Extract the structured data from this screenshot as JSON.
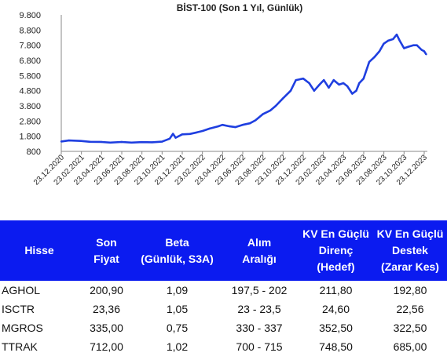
{
  "chart_data": {
    "type": "line",
    "title": "BİST-100 (Son 1 Yıl, Günlük)",
    "xlabel": "",
    "ylabel": "",
    "ylim": [
      800,
      9800
    ],
    "y_ticks": [
      "9.800",
      "8.800",
      "7.800",
      "6.800",
      "5.800",
      "4.800",
      "3.800",
      "2.800",
      "1.800",
      "800"
    ],
    "x_ticks": [
      "23.12.2020",
      "23.02.2021",
      "23.04.2021",
      "23.06.2021",
      "23.08.2021",
      "23.10.2021",
      "23.12.2021",
      "23.02.2022",
      "23.04.2022",
      "23.06.2022",
      "23.08.2022",
      "23.10.2022",
      "23.12.2022",
      "23.02.2023",
      "23.04.2023",
      "23.06.2023",
      "23.08.2023",
      "23.10.2023",
      "23.12.2023"
    ],
    "grid": false,
    "line_color": "#1f3fe0",
    "series": [
      {
        "x": [
          "2020-12-23",
          "2021-01-15",
          "2021-02-20",
          "2021-03-20",
          "2021-04-23",
          "2021-05-20",
          "2021-06-23",
          "2021-07-23",
          "2021-08-23",
          "2021-09-23",
          "2021-10-23",
          "2021-11-15",
          "2021-11-25",
          "2021-12-03",
          "2021-12-23",
          "2022-01-15",
          "2022-02-05",
          "2022-02-23",
          "2022-03-15",
          "2022-04-10",
          "2022-04-23",
          "2022-05-15",
          "2022-06-01",
          "2022-06-23",
          "2022-07-15",
          "2022-08-01",
          "2022-08-23",
          "2022-09-15",
          "2022-10-01",
          "2022-10-23",
          "2022-11-15",
          "2022-12-01",
          "2022-12-23",
          "2023-01-10",
          "2023-01-25",
          "2023-02-10",
          "2023-02-23",
          "2023-03-10",
          "2023-03-25",
          "2023-04-10",
          "2023-04-23",
          "2023-05-05",
          "2023-05-20",
          "2023-06-01",
          "2023-06-10",
          "2023-06-23",
          "2023-07-10",
          "2023-07-25",
          "2023-08-10",
          "2023-08-23",
          "2023-09-05",
          "2023-09-20",
          "2023-10-01",
          "2023-10-10",
          "2023-10-23",
          "2023-11-05",
          "2023-11-20",
          "2023-12-01",
          "2023-12-15",
          "2023-12-23",
          "2023-12-29"
        ],
        "y": [
          1450,
          1520,
          1490,
          1430,
          1420,
          1380,
          1420,
          1380,
          1410,
          1400,
          1440,
          1640,
          1960,
          1700,
          1920,
          1950,
          2050,
          2150,
          2300,
          2450,
          2550,
          2450,
          2400,
          2550,
          2650,
          2850,
          3250,
          3500,
          3800,
          4300,
          4800,
          5500,
          5600,
          5300,
          4800,
          5200,
          5500,
          5000,
          5500,
          5200,
          5300,
          5100,
          4600,
          4800,
          5300,
          5600,
          6700,
          7000,
          7400,
          7900,
          8100,
          8200,
          8500,
          8100,
          7600,
          7700,
          7800,
          7800,
          7500,
          7400,
          7200
        ]
      }
    ]
  },
  "table": {
    "headers": [
      [
        "Hisse"
      ],
      [
        "Son",
        "Fiyat"
      ],
      [
        "Beta",
        "(Günlük, S3A)"
      ],
      [
        "Alım",
        "Aralığı"
      ],
      [
        "KV En Güçlü",
        "Direnç",
        "(Hedef)"
      ],
      [
        "KV En Güçlü",
        "Destek",
        "(Zarar Kes)"
      ]
    ],
    "rows": [
      [
        "AGHOL",
        "200,90",
        "1,09",
        "197,5 - 202",
        "211,80",
        "192,80"
      ],
      [
        "ISCTR",
        "23,36",
        "1,05",
        "23 - 23,5",
        "24,60",
        "22,56"
      ],
      [
        "MGROS",
        "335,00",
        "0,75",
        "330 - 337",
        "352,50",
        "322,50"
      ],
      [
        "TTRAK",
        "712,00",
        "1,02",
        "700 - 715",
        "748,50",
        "685,00"
      ]
    ],
    "header_bg": "#0b1bf0",
    "header_text_color": "#ffffff"
  }
}
